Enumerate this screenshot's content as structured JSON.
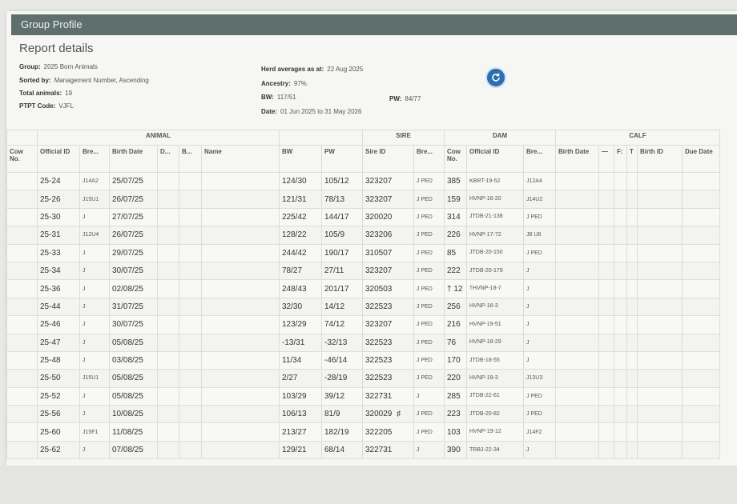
{
  "window_title": "Group Profile",
  "report_title": "Report details",
  "details": {
    "group_label": "Group:",
    "group_value": "2025 Born Animals",
    "sorted_label": "Sorted by:",
    "sorted_value": "Management Number, Ascending",
    "total_label": "Total animals:",
    "total_value": "19",
    "ptpt_label": "PTPT Code:",
    "ptpt_value": "VJFL",
    "herd_label": "Herd averages as at:",
    "herd_value": "22 Aug 2025",
    "ancestry_label": "Ancestry:",
    "ancestry_value": "97%",
    "bw_label": "BW:",
    "bw_value": "117/51",
    "pw_label": "PW:",
    "pw_value": "84/77",
    "date_label": "Date:",
    "date_value": "01 Jun 2025 to 31 May 2026"
  },
  "refresh_icon": "refresh-icon",
  "groups": {
    "animal": "ANIMAL",
    "sire": "SIRE",
    "dam": "DAM",
    "calf": "CALF"
  },
  "columns": {
    "cow_no": "Cow No.",
    "official_id": "Official ID",
    "breed": "Bre...",
    "birth_date": "Birth Date",
    "d": "D...",
    "b": "B...",
    "name": "Name",
    "bw": "BW",
    "pw": "PW",
    "sire_id": "Sire ID",
    "sire_breed": "Bre...",
    "dam_cow_no": "Cow No.",
    "dam_official_id": "Official ID",
    "dam_breed": "Bre...",
    "calf_birth_date": "Birth Date",
    "calf_dash": "—",
    "calf_f": "F:",
    "calf_t": "T",
    "calf_birth_id": "Birth ID",
    "calf_due_date": "Due Date"
  },
  "rows": [
    {
      "official_id": "25-24",
      "breed": "J14A2",
      "birth_date": "25/07/25",
      "bw": "124/30",
      "pw": "105/12",
      "sire_id": "323207",
      "mark": "",
      "sire_breed": "J PED",
      "dam_cow_no": "385",
      "dam_official_id": "KBRT-19-52",
      "dam_breed": "J12A4"
    },
    {
      "official_id": "25-26",
      "breed": "J15U1",
      "birth_date": "26/07/25",
      "bw": "121/31",
      "pw": "78/13",
      "sire_id": "323207",
      "mark": "",
      "sire_breed": "J PED",
      "dam_cow_no": "159",
      "dam_official_id": "HVNP-16-20",
      "dam_breed": "J14U2"
    },
    {
      "official_id": "25-30",
      "breed": "J",
      "birth_date": "27/07/25",
      "bw": "225/42",
      "pw": "144/17",
      "sire_id": "320020",
      "mark": "",
      "sire_breed": "J PED",
      "dam_cow_no": "314",
      "dam_official_id": "JTDB-21-138",
      "dam_breed": "J PED"
    },
    {
      "official_id": "25-31",
      "breed": "J12U4",
      "birth_date": "26/07/25",
      "bw": "128/22",
      "pw": "105/9",
      "sire_id": "323206",
      "mark": "",
      "sire_breed": "J PED",
      "dam_cow_no": "226",
      "dam_official_id": "HVNP-17-72",
      "dam_breed": "J8 U8"
    },
    {
      "official_id": "25-33",
      "breed": "J",
      "birth_date": "29/07/25",
      "bw": "244/42",
      "pw": "190/17",
      "sire_id": "310507",
      "mark": "",
      "sire_breed": "J PED",
      "dam_cow_no": "85",
      "dam_official_id": "JTDB-20-150",
      "dam_breed": "J PED"
    },
    {
      "official_id": "25-34",
      "breed": "J",
      "birth_date": "30/07/25",
      "bw": "78/27",
      "pw": "27/11",
      "sire_id": "323207",
      "mark": "",
      "sire_breed": "J PED",
      "dam_cow_no": "222",
      "dam_official_id": "JTDB-20-179",
      "dam_breed": "J"
    },
    {
      "official_id": "25-36",
      "breed": "J",
      "birth_date": "02/08/25",
      "bw": "248/43",
      "pw": "201/17",
      "sire_id": "320503",
      "mark": "",
      "sire_breed": "J PED",
      "dam_cow_no": "† 12",
      "dam_official_id": "†HVNP-18-7",
      "dam_breed": "J"
    },
    {
      "official_id": "25-44",
      "breed": "J",
      "birth_date": "31/07/25",
      "bw": "32/30",
      "pw": "14/12",
      "sire_id": "322523",
      "mark": "",
      "sire_breed": "J PED",
      "dam_cow_no": "256",
      "dam_official_id": "HVNP-16-3",
      "dam_breed": "J"
    },
    {
      "official_id": "25-46",
      "breed": "J",
      "birth_date": "30/07/25",
      "bw": "123/29",
      "pw": "74/12",
      "sire_id": "323207",
      "mark": "",
      "sire_breed": "J PED",
      "dam_cow_no": "216",
      "dam_official_id": "HVNP-19-51",
      "dam_breed": "J"
    },
    {
      "official_id": "25-47",
      "breed": "J",
      "birth_date": "05/08/25",
      "bw": "-13/31",
      "pw": "-32/13",
      "sire_id": "322523",
      "mark": "",
      "sire_breed": "J PED",
      "dam_cow_no": "76",
      "dam_official_id": "HVNP-18-29",
      "dam_breed": "J"
    },
    {
      "official_id": "25-48",
      "breed": "J",
      "birth_date": "03/08/25",
      "bw": "11/34",
      "pw": "-46/14",
      "sire_id": "322523",
      "mark": "",
      "sire_breed": "J PED",
      "dam_cow_no": "170",
      "dam_official_id": "JTDB-18-55",
      "dam_breed": "J"
    },
    {
      "official_id": "25-50",
      "breed": "J15U1",
      "birth_date": "05/08/25",
      "bw": "2/27",
      "pw": "-28/19",
      "sire_id": "322523",
      "mark": "",
      "sire_breed": "J PED",
      "dam_cow_no": "220",
      "dam_official_id": "HVNP-19-3",
      "dam_breed": "J13U3"
    },
    {
      "official_id": "25-52",
      "breed": "J",
      "birth_date": "05/08/25",
      "bw": "103/29",
      "pw": "39/12",
      "sire_id": "322731",
      "mark": "",
      "sire_breed": "J",
      "dam_cow_no": "285",
      "dam_official_id": "JTDB-22-61",
      "dam_breed": "J PED"
    },
    {
      "official_id": "25-56",
      "breed": "J",
      "birth_date": "10/08/25",
      "bw": "106/13",
      "pw": "81/9",
      "sire_id": "320029",
      "mark": "♯",
      "sire_breed": "J PED",
      "dam_cow_no": "223",
      "dam_official_id": "JTDB-20-82",
      "dam_breed": "J PED"
    },
    {
      "official_id": "25-60",
      "breed": "J15F1",
      "birth_date": "11/08/25",
      "bw": "213/27",
      "pw": "182/19",
      "sire_id": "322205",
      "mark": "",
      "sire_breed": "J PED",
      "dam_cow_no": "103",
      "dam_official_id": "HVNP-19-12",
      "dam_breed": "J14F2"
    },
    {
      "official_id": "25-62",
      "breed": "J",
      "birth_date": "07/08/25",
      "bw": "129/21",
      "pw": "68/14",
      "sire_id": "322731",
      "mark": "",
      "sire_breed": "J",
      "dam_cow_no": "390",
      "dam_official_id": "TRBJ-22-34",
      "dam_breed": "J"
    }
  ]
}
